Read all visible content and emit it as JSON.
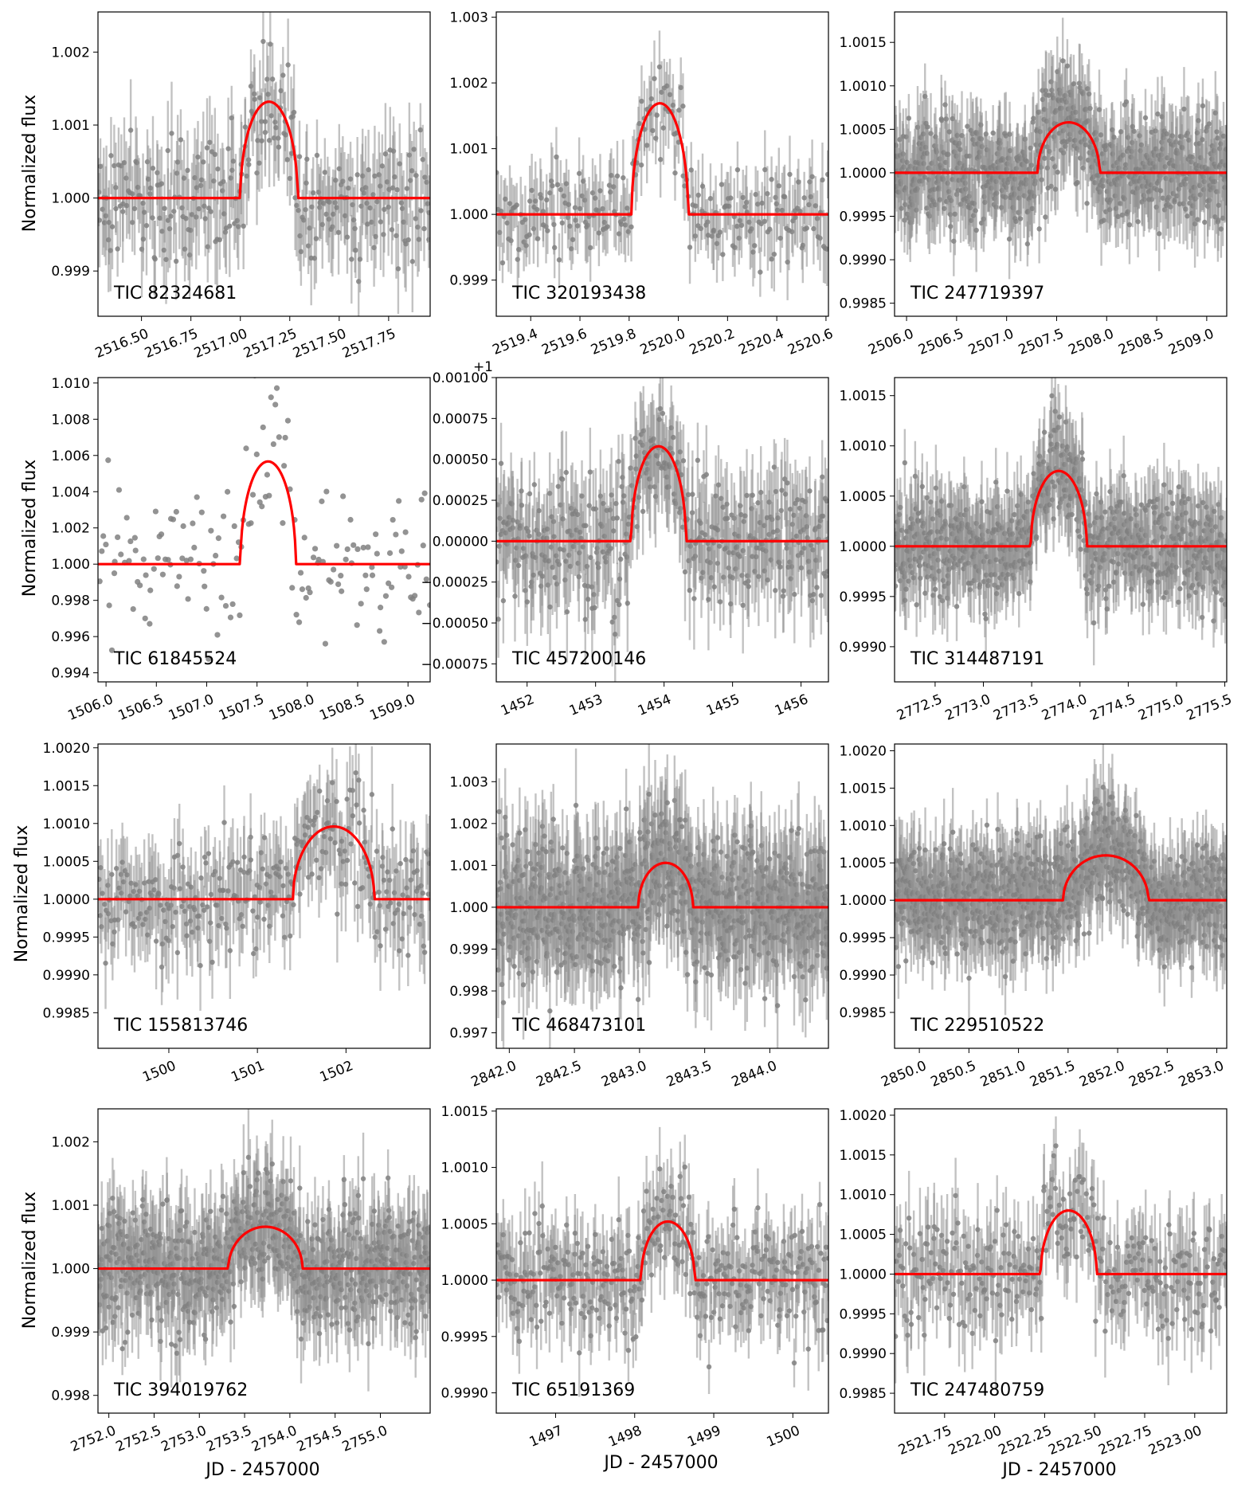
{
  "figure": {
    "ylabel": "Normalized flux",
    "xlabel": "JD - 2457000"
  },
  "chart_data": [
    {
      "type": "scatter",
      "tic": "TIC 82324681",
      "xlim": [
        2516.28,
        2517.96
      ],
      "ylim": [
        0.99838,
        1.00255
      ],
      "xticks": [
        "2516.50",
        "2516.75",
        "2517.00",
        "2517.25",
        "2517.50",
        "2517.75"
      ],
      "yticks": [
        "0.999",
        "1.000",
        "1.001",
        "1.002"
      ],
      "offset": "",
      "series": [
        {
          "name": "model",
          "t0": 2517.145,
          "duration": 0.29,
          "depth": 0.00132
        },
        {
          "name": "data",
          "npoints": 280,
          "scatter": 0.00045,
          "errors": true
        }
      ]
    },
    {
      "type": "scatter",
      "tic": "TIC 320193438",
      "xlim": [
        2519.26,
        2520.61
      ],
      "ylim": [
        0.99845,
        1.00308
      ],
      "xticks": [
        "2519.4",
        "2519.6",
        "2519.8",
        "2520.0",
        "2520.2",
        "2520.4",
        "2520.6"
      ],
      "yticks": [
        "0.999",
        "1.000",
        "1.001",
        "1.002",
        "1.003"
      ],
      "offset": "",
      "series": [
        {
          "name": "model",
          "t0": 2519.925,
          "duration": 0.23,
          "depth": 0.00169
        },
        {
          "name": "data",
          "npoints": 240,
          "scatter": 0.00038,
          "errors": true
        }
      ]
    },
    {
      "type": "scatter",
      "tic": "TIC 247719397",
      "xlim": [
        2505.88,
        2509.2
      ],
      "ylim": [
        0.99835,
        1.00185
      ],
      "xticks": [
        "2506.0",
        "2506.5",
        "2507.0",
        "2507.5",
        "2508.0",
        "2508.5",
        "2509.0"
      ],
      "yticks": [
        "0.9985",
        "0.9990",
        "0.9995",
        "1.0000",
        "1.0005",
        "1.0010",
        "1.0015"
      ],
      "offset": "",
      "series": [
        {
          "name": "model",
          "t0": 2507.62,
          "duration": 0.62,
          "depth": 0.00058
        },
        {
          "name": "data",
          "npoints": 700,
          "scatter": 0.00032,
          "errors": true
        }
      ]
    },
    {
      "type": "scatter",
      "tic": "TIC 61845524",
      "xlim": [
        1505.92,
        1509.22
      ],
      "ylim": [
        0.9935,
        1.0103
      ],
      "xticks": [
        "1506.0",
        "1506.5",
        "1507.0",
        "1507.5",
        "1508.0",
        "1508.5",
        "1509.0"
      ],
      "yticks": [
        "0.994",
        "0.996",
        "0.998",
        "1.000",
        "1.002",
        "1.004",
        "1.006",
        "1.008",
        "1.010"
      ],
      "offset": "",
      "series": [
        {
          "name": "model",
          "t0": 1507.61,
          "duration": 0.55,
          "depth": 0.00567
        },
        {
          "name": "data",
          "npoints": 160,
          "scatter": 0.0022,
          "errors": false
        }
      ]
    },
    {
      "type": "scatter",
      "tic": "TIC 457200146",
      "xlim": [
        1451.55,
        1456.4
      ],
      "ylim": [
        -0.00086,
        0.001
      ],
      "xticks": [
        "1452",
        "1453",
        "1454",
        "1455",
        "1456"
      ],
      "yticks": [
        "−0.00075",
        "−0.00050",
        "−0.00025",
        "0.00000",
        "0.00025",
        "0.00050",
        "0.00075",
        "0.00100"
      ],
      "offset": "+1",
      "series": [
        {
          "name": "model",
          "t0": 1453.92,
          "duration": 0.8,
          "depth": 0.00058
        },
        {
          "name": "data",
          "npoints": 420,
          "scatter": 0.0002,
          "errors": true
        }
      ]
    },
    {
      "type": "scatter",
      "tic": "TIC 314487191",
      "xlim": [
        2772.08,
        2775.52
      ],
      "ylim": [
        0.99865,
        1.00168
      ],
      "xticks": [
        "2772.5",
        "2773.0",
        "2773.5",
        "2774.0",
        "2774.5",
        "2775.0",
        "2775.5"
      ],
      "yticks": [
        "0.9990",
        "0.9995",
        "1.0000",
        "1.0005",
        "1.0010",
        "1.0015"
      ],
      "offset": "",
      "series": [
        {
          "name": "model",
          "t0": 2773.78,
          "duration": 0.58,
          "depth": 0.00075
        },
        {
          "name": "data",
          "npoints": 700,
          "scatter": 0.00028,
          "errors": true
        }
      ]
    },
    {
      "type": "scatter",
      "tic": "TIC 155813746",
      "xlim": [
        1499.2,
        1502.95
      ],
      "ylim": [
        0.99803,
        1.00205
      ],
      "xticks": [
        "1500",
        "1501",
        "1502"
      ],
      "yticks": [
        "0.9985",
        "0.9990",
        "0.9995",
        "1.0000",
        "1.0005",
        "1.0010",
        "1.0015",
        "1.0020"
      ],
      "offset": "",
      "series": [
        {
          "name": "model",
          "t0": 1501.86,
          "duration": 0.92,
          "depth": 0.00096
        },
        {
          "name": "data",
          "npoints": 300,
          "scatter": 0.0004,
          "errors": true
        }
      ]
    },
    {
      "type": "scatter",
      "tic": "TIC 468473101",
      "xlim": [
        2841.9,
        2844.45
      ],
      "ylim": [
        0.99663,
        1.0039
      ],
      "xticks": [
        "2842.0",
        "2842.5",
        "2843.0",
        "2843.5",
        "2844.0"
      ],
      "yticks": [
        "0.997",
        "0.998",
        "0.999",
        "1.000",
        "1.001",
        "1.002",
        "1.003"
      ],
      "offset": "",
      "series": [
        {
          "name": "model",
          "t0": 2843.2,
          "duration": 0.42,
          "depth": 0.00106
        },
        {
          "name": "data",
          "npoints": 800,
          "scatter": 0.00085,
          "errors": true
        }
      ]
    },
    {
      "type": "scatter",
      "tic": "TIC 229510522",
      "xlim": [
        2849.75,
        2853.1
      ],
      "ylim": [
        0.99802,
        1.00209
      ],
      "xticks": [
        "2850.0",
        "2850.5",
        "2851.0",
        "2851.5",
        "2852.0",
        "2852.5",
        "2853.0"
      ],
      "yticks": [
        "0.9985",
        "0.9990",
        "0.9995",
        "1.0000",
        "1.0005",
        "1.0010",
        "1.0015",
        "1.0020"
      ],
      "offset": "",
      "series": [
        {
          "name": "model",
          "t0": 2851.88,
          "duration": 0.86,
          "depth": 0.0006
        },
        {
          "name": "data",
          "npoints": 900,
          "scatter": 0.00038,
          "errors": true
        }
      ]
    },
    {
      "type": "scatter",
      "tic": "TIC 394019762",
      "xlim": [
        2751.88,
        2755.55
      ],
      "ylim": [
        0.99772,
        1.00252
      ],
      "xticks": [
        "2752.0",
        "2752.5",
        "2753.0",
        "2753.5",
        "2754.0",
        "2754.5",
        "2755.0"
      ],
      "yticks": [
        "0.998",
        "0.999",
        "1.000",
        "1.001",
        "1.002"
      ],
      "offset": "",
      "series": [
        {
          "name": "model",
          "t0": 2753.73,
          "duration": 0.82,
          "depth": 0.00066
        },
        {
          "name": "data",
          "npoints": 700,
          "scatter": 0.00048,
          "errors": true
        }
      ]
    },
    {
      "type": "scatter",
      "tic": "TIC 65191369",
      "xlim": [
        1496.25,
        1500.45
      ],
      "ylim": [
        0.99882,
        1.00152
      ],
      "xticks": [
        "1497",
        "1498",
        "1499",
        "1500"
      ],
      "yticks": [
        "0.9990",
        "0.9995",
        "1.0000",
        "1.0005",
        "1.0010",
        "1.0015"
      ],
      "offset": "",
      "series": [
        {
          "name": "model",
          "t0": 1498.42,
          "duration": 0.68,
          "depth": 0.00052
        },
        {
          "name": "data",
          "npoints": 380,
          "scatter": 0.00025,
          "errors": true
        }
      ]
    },
    {
      "type": "scatter",
      "tic": "TIC 247480759",
      "xlim": [
        2521.5,
        2523.16
      ],
      "ylim": [
        0.99825,
        1.00208
      ],
      "xticks": [
        "2521.75",
        "2522.00",
        "2522.25",
        "2522.50",
        "2522.75",
        "2523.00"
      ],
      "yticks": [
        "0.9985",
        "0.9990",
        "0.9995",
        "1.0000",
        "1.0005",
        "1.0010",
        "1.0015",
        "1.0020"
      ],
      "offset": "",
      "series": [
        {
          "name": "model",
          "t0": 2522.37,
          "duration": 0.28,
          "depth": 0.0008
        },
        {
          "name": "data",
          "npoints": 320,
          "scatter": 0.00038,
          "errors": true
        }
      ]
    }
  ]
}
